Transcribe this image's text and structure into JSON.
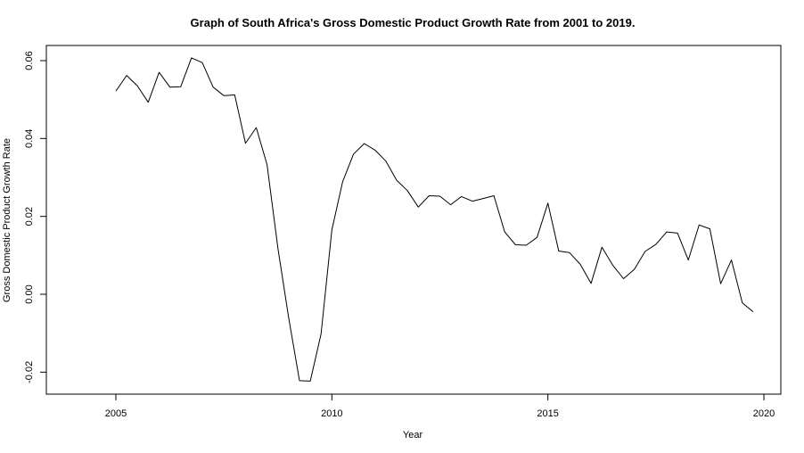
{
  "chart_data": {
    "type": "line",
    "title": "Graph of South Africa's Gross Domestic Product Growth Rate from 2001 to 2019.",
    "xlabel": "Year",
    "ylabel": "Gross Domestic Product Growth Rate",
    "xlim": [
      2003.2,
      2020.8
    ],
    "ylim": [
      -0.025,
      0.063
    ],
    "xticks": [
      2005,
      2010,
      2015,
      2020
    ],
    "xtick_labels": [
      "2005",
      "2010",
      "2015",
      "2020"
    ],
    "yticks": [
      -0.02,
      0.0,
      0.02,
      0.04,
      0.06
    ],
    "ytick_labels": [
      "-0.02",
      "0.00",
      "0.02",
      "0.04",
      "0.06"
    ],
    "grid": false,
    "line_color": "#000000",
    "series": [
      {
        "x": [
          2005.0,
          2005.25,
          2005.5,
          2005.75,
          2006.0,
          2006.25,
          2006.5,
          2006.75,
          2007.0,
          2007.25,
          2007.5,
          2007.75,
          2008.0,
          2008.25,
          2008.5,
          2008.75,
          2009.0,
          2009.25,
          2009.5,
          2009.75,
          2010.0,
          2010.25,
          2010.5,
          2010.75,
          2011.0,
          2011.25,
          2011.5,
          2011.75,
          2012.0,
          2012.25,
          2012.5,
          2012.75,
          2013.0,
          2013.25,
          2013.5,
          2013.75,
          2014.0,
          2014.25,
          2014.5,
          2014.75,
          2015.0,
          2015.25,
          2015.5,
          2015.75,
          2016.0,
          2016.25,
          2016.5,
          2016.75,
          2017.0,
          2017.25,
          2017.5,
          2017.75,
          2018.0,
          2018.25,
          2018.5,
          2018.75,
          2019.0,
          2019.25,
          2019.5,
          2019.75
        ],
        "values": [
          0.0522,
          0.0562,
          0.0535,
          0.0493,
          0.057,
          0.0532,
          0.0533,
          0.0607,
          0.0595,
          0.0532,
          0.051,
          0.0512,
          0.0388,
          0.0428,
          0.0333,
          0.0118,
          -0.0061,
          -0.0222,
          -0.0223,
          -0.0102,
          0.0165,
          0.0289,
          0.036,
          0.0387,
          0.037,
          0.0342,
          0.0293,
          0.0266,
          0.0224,
          0.0253,
          0.0252,
          0.023,
          0.0251,
          0.0239,
          0.0246,
          0.0253,
          0.016,
          0.0127,
          0.0126,
          0.0146,
          0.0234,
          0.0111,
          0.0107,
          0.0077,
          0.0028,
          0.0121,
          0.0075,
          0.004,
          0.0064,
          0.011,
          0.0128,
          0.016,
          0.0157,
          0.0088,
          0.0178,
          0.0168,
          0.0027,
          0.0088,
          -0.0022,
          -0.0045
        ]
      }
    ]
  }
}
